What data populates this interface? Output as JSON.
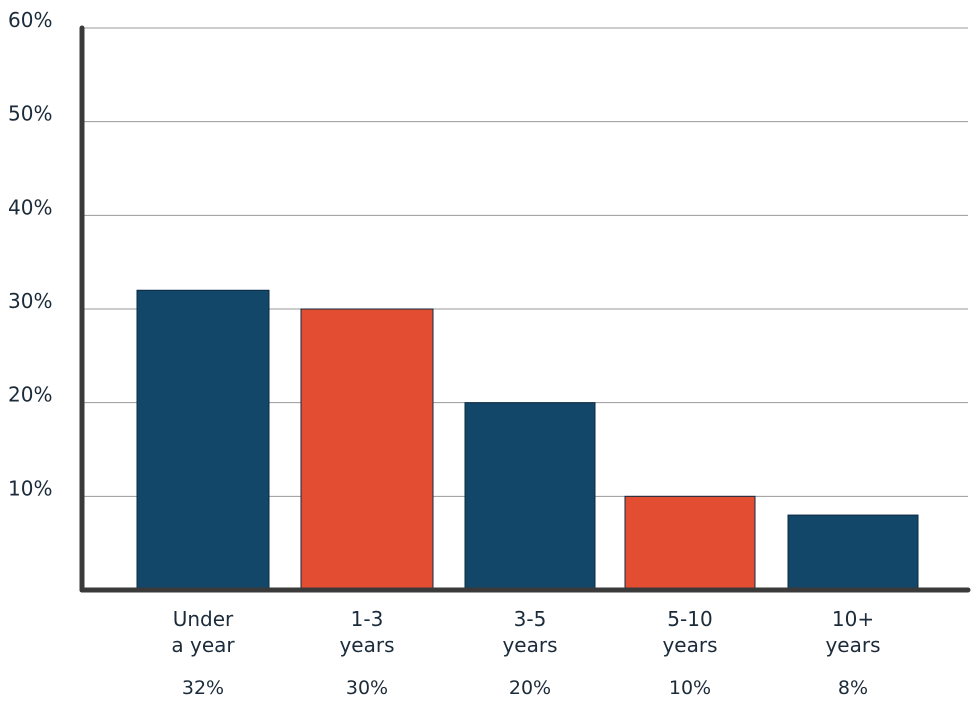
{
  "chart_data": {
    "type": "bar",
    "title": "",
    "xlabel": "",
    "ylabel": "",
    "ylim": [
      0,
      60
    ],
    "yticks": [
      {
        "value": 10,
        "label": "10%"
      },
      {
        "value": 20,
        "label": "20%"
      },
      {
        "value": 30,
        "label": "30%"
      },
      {
        "value": 40,
        "label": "40%"
      },
      {
        "value": 50,
        "label": "50%"
      },
      {
        "value": 60,
        "label": "60%"
      }
    ],
    "grid": true,
    "categories": [
      {
        "lines": [
          "Under",
          "a year"
        ],
        "value": 32,
        "value_label": "32%",
        "color": "#12476a"
      },
      {
        "lines": [
          "1-3",
          "years"
        ],
        "value": 30,
        "value_label": "30%",
        "color": "#e34e33"
      },
      {
        "lines": [
          "3-5",
          "years"
        ],
        "value": 20,
        "value_label": "20%",
        "color": "#12476a"
      },
      {
        "lines": [
          "5-10",
          "years"
        ],
        "value": 10,
        "value_label": "10%",
        "color": "#e34e33"
      },
      {
        "lines": [
          "10+",
          "years"
        ],
        "value": 8,
        "value_label": "8%",
        "color": "#12476a"
      }
    ]
  }
}
